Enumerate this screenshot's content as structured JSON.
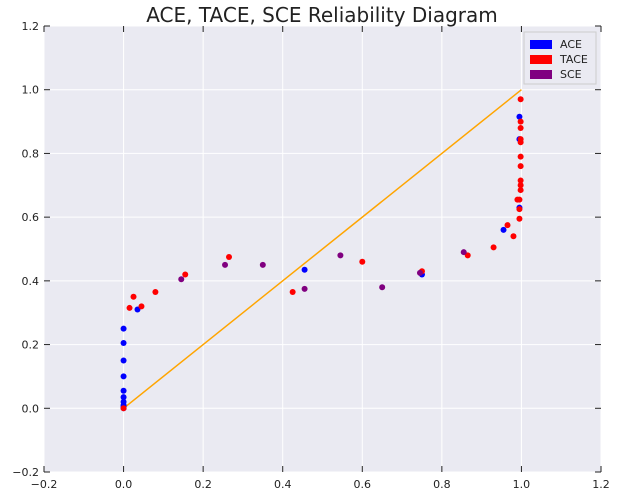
{
  "chart_data": {
    "type": "scatter",
    "title": "ACE, TACE, SCE Reliability Diagram",
    "xlabel": "",
    "ylabel": "",
    "xlim": [
      -0.2,
      1.2
    ],
    "ylim": [
      -0.2,
      1.2
    ],
    "xticks": [
      "−0.2",
      "0.0",
      "0.2",
      "0.4",
      "0.6",
      "0.8",
      "1.0",
      "1.2"
    ],
    "yticks": [
      "−0.2",
      "0.0",
      "0.2",
      "0.4",
      "0.6",
      "0.8",
      "1.0",
      "1.2"
    ],
    "xtick_values": [
      -0.2,
      0,
      0.2,
      0.4,
      0.6,
      0.8,
      1.0,
      1.2
    ],
    "ytick_values": [
      -0.2,
      0,
      0.2,
      0.4,
      0.6,
      0.8,
      1.0,
      1.2
    ],
    "grid": true,
    "legend_position": "top-right",
    "background_color": "#eaeaf2",
    "reference_line": {
      "x": [
        0,
        1
      ],
      "y": [
        0,
        1
      ],
      "color": "#ffa500"
    },
    "series": [
      {
        "name": "ACE",
        "color": "#0000ff",
        "points": [
          [
            0.0,
            0.0
          ],
          [
            0.0,
            0.005
          ],
          [
            0.0,
            0.01
          ],
          [
            0.0,
            0.02
          ],
          [
            0.0,
            0.035
          ],
          [
            0.0,
            0.055
          ],
          [
            0.0,
            0.1
          ],
          [
            0.0,
            0.15
          ],
          [
            0.0,
            0.205
          ],
          [
            0.0,
            0.25
          ],
          [
            0.035,
            0.31
          ],
          [
            0.455,
            0.435
          ],
          [
            0.75,
            0.42
          ],
          [
            0.955,
            0.56
          ],
          [
            0.995,
            0.915
          ],
          [
            0.995,
            0.845
          ],
          [
            0.995,
            0.63
          ]
        ]
      },
      {
        "name": "TACE",
        "color": "#ff0000",
        "points": [
          [
            0.0,
            0.0
          ],
          [
            0.015,
            0.315
          ],
          [
            0.025,
            0.35
          ],
          [
            0.045,
            0.32
          ],
          [
            0.08,
            0.365
          ],
          [
            0.155,
            0.42
          ],
          [
            0.265,
            0.475
          ],
          [
            0.425,
            0.365
          ],
          [
            0.6,
            0.46
          ],
          [
            0.75,
            0.43
          ],
          [
            0.865,
            0.48
          ],
          [
            0.93,
            0.505
          ],
          [
            0.965,
            0.575
          ],
          [
            0.98,
            0.54
          ],
          [
            0.99,
            0.655
          ],
          [
            0.995,
            0.595
          ],
          [
            0.995,
            0.625
          ],
          [
            0.995,
            0.655
          ],
          [
            0.998,
            0.685
          ],
          [
            0.998,
            0.7
          ],
          [
            0.998,
            0.715
          ],
          [
            0.998,
            0.76
          ],
          [
            0.998,
            0.79
          ],
          [
            0.998,
            0.835
          ],
          [
            0.998,
            0.845
          ],
          [
            0.998,
            0.88
          ],
          [
            0.998,
            0.9
          ],
          [
            0.998,
            0.97
          ]
        ]
      },
      {
        "name": "SCE",
        "color": "#800080",
        "points": [
          [
            0.145,
            0.405
          ],
          [
            0.255,
            0.45
          ],
          [
            0.35,
            0.45
          ],
          [
            0.455,
            0.375
          ],
          [
            0.545,
            0.48
          ],
          [
            0.65,
            0.38
          ],
          [
            0.745,
            0.425
          ],
          [
            0.855,
            0.49
          ]
        ]
      }
    ]
  }
}
